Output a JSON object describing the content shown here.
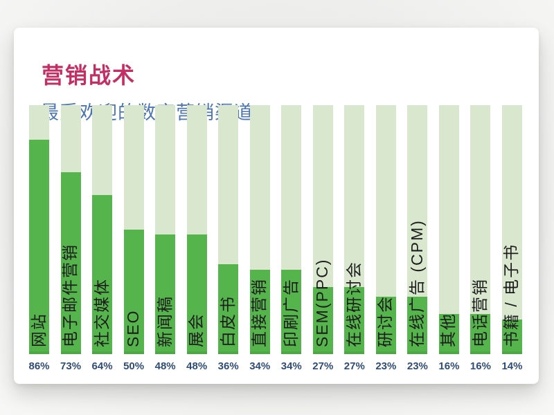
{
  "header": {
    "title": "营销战术",
    "subtitle": "最受欢迎的数字营销渠道"
  },
  "colors": {
    "title": "#c42f63",
    "subtitle": "#4b74b3",
    "bar_fill": "#55b44b",
    "bar_track": "#d8e7cd",
    "bar_label": "#1d1d1d",
    "percent_label": "#2f4b76",
    "card_bg": "#ffffff",
    "page_bg": "#f1f1f0"
  },
  "chart_data": {
    "type": "bar",
    "title": "营销战术",
    "subtitle": "最受欢迎的数字营销渠道",
    "orientation": "vertical",
    "unit": "%",
    "ylim": [
      0,
      100
    ],
    "grid": false,
    "legend": false,
    "categories": [
      "网站",
      "电子邮件营销",
      "社交媒体",
      "SEO",
      "新闻稿",
      "展会",
      "白皮书",
      "直接营销",
      "印刷广告",
      "SEM(PPC)",
      "在线研讨会",
      "研讨会",
      "在线广告 (CPM)",
      "其他",
      "电话营销",
      "书籍 / 电子书"
    ],
    "values": [
      86,
      73,
      64,
      50,
      48,
      48,
      36,
      34,
      34,
      27,
      27,
      23,
      23,
      16,
      16,
      14
    ],
    "value_labels": [
      "86%",
      "73%",
      "64%",
      "50%",
      "48%",
      "48%",
      "36%",
      "34%",
      "34%",
      "27%",
      "27%",
      "23%",
      "23%",
      "16%",
      "16%",
      "14%"
    ]
  }
}
